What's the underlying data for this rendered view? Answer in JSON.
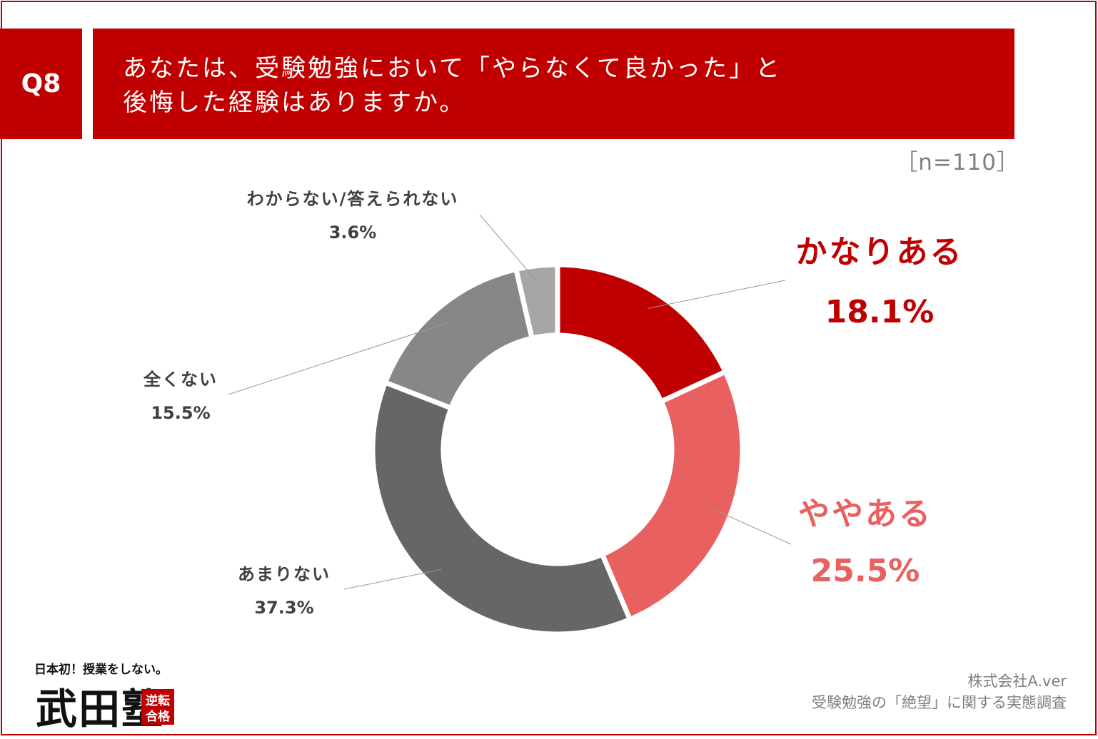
{
  "header": {
    "q_label": "Q8",
    "title_line1": "あなたは、受験勉強において「やらなくて良かった」と",
    "title_line2": "後悔した経験はありますか。"
  },
  "sample_size": "［n=110］",
  "colors": {
    "accent": "#c00000",
    "slice_kanari": "#c00000",
    "slice_yaya": "#e86060",
    "slice_amari": "#666666",
    "slice_mattaku": "#878787",
    "slice_wakaranai": "#a6a6a6"
  },
  "chart_data": {
    "type": "pie",
    "donut": true,
    "categories": [
      "かなりある",
      "ややある",
      "あまりない",
      "全くない",
      "わからない/答えられない"
    ],
    "values": [
      18.1,
      25.5,
      37.3,
      15.5,
      3.6
    ],
    "value_labels": [
      "18.1%",
      "25.5%",
      "37.3%",
      "15.5%",
      "3.6%"
    ]
  },
  "footer": {
    "company": "株式会社A.ver",
    "survey": "受験勉強の「絶望」に関する実態調査"
  },
  "logo": {
    "tagline": "日本初！授業をしない。",
    "name": "武田塾",
    "badge": "逆転合格"
  }
}
